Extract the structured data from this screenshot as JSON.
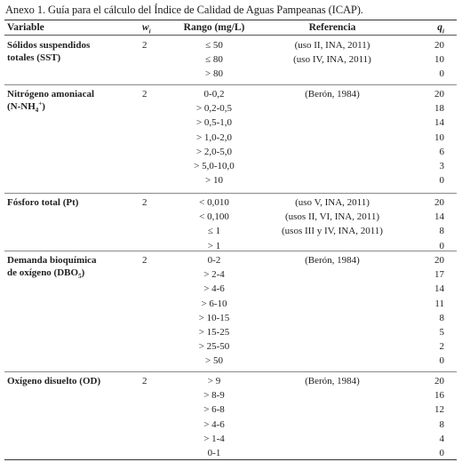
{
  "caption": "Anexo 1. Guía para el cálculo del Índice de Calidad de Aguas Pampeanas (ICAP).",
  "headers": {
    "variable": "Variable",
    "w": "w",
    "w_sub": "i",
    "rango": "Rango (mg/L)",
    "referencia": "Referencia",
    "q": "q",
    "q_sub": "i"
  },
  "groups": [
    {
      "var_lines": [
        "Sólidos suspendidos",
        "totales (SST)"
      ],
      "w": "2",
      "rows": [
        {
          "rango": "≤ 50",
          "ref": "(uso II, INA, 2011)",
          "q": "20"
        },
        {
          "rango": "≤ 80",
          "ref": "(uso IV, INA, 2011)",
          "q": "10"
        },
        {
          "rango": "> 80",
          "ref": "",
          "q": "0"
        }
      ]
    },
    {
      "var_lines": [
        "Nitrógeno amoniacal",
        "(N-NH"
      ],
      "var_suffix_sub": "4",
      "var_suffix_sup": "+",
      "var_suffix_end": ")",
      "w": "2",
      "rows": [
        {
          "rango": "0-0,2",
          "ref": "(Berón, 1984)",
          "q": "20"
        },
        {
          "rango": "> 0,2-0,5",
          "ref": "",
          "q": "18"
        },
        {
          "rango": "> 0,5-1,0",
          "ref": "",
          "q": "14"
        },
        {
          "rango": "> 1,0-2,0",
          "ref": "",
          "q": "10"
        },
        {
          "rango": "> 2,0-5,0",
          "ref": "",
          "q": "6"
        },
        {
          "rango": "> 5,0-10,0",
          "ref": "",
          "q": "3"
        },
        {
          "rango": "> 10",
          "ref": "",
          "q": "0"
        }
      ]
    },
    {
      "var_lines": [
        "Fósforo total (Pt)"
      ],
      "w": "2",
      "rows": [
        {
          "rango": "< 0,010",
          "ref": "(uso V, INA, 2011)",
          "q": "20"
        },
        {
          "rango": "< 0,100",
          "ref": "(usos II, VI, INA, 2011)",
          "q": "14"
        },
        {
          "rango": "≤ 1",
          "ref": "(usos III y IV, INA, 2011)",
          "q": "8"
        },
        {
          "rango": "> 1",
          "ref": "",
          "q": "0"
        }
      ]
    },
    {
      "var_lines": [
        "Demanda bioquímica",
        "de oxígeno (DBO"
      ],
      "var_suffix_sub": "5",
      "var_suffix_end": ")",
      "w": "2",
      "rows": [
        {
          "rango": "0-2",
          "ref": "(Berón, 1984)",
          "q": "20"
        },
        {
          "rango": "> 2-4",
          "ref": "",
          "q": "17"
        },
        {
          "rango": "> 4-6",
          "ref": "",
          "q": "14"
        },
        {
          "rango": "> 6-10",
          "ref": "",
          "q": "11"
        },
        {
          "rango": "> 10-15",
          "ref": "",
          "q": "8"
        },
        {
          "rango": "> 15-25",
          "ref": "",
          "q": "5"
        },
        {
          "rango": "> 25-50",
          "ref": "",
          "q": "2"
        },
        {
          "rango": "> 50",
          "ref": "",
          "q": "0"
        }
      ]
    },
    {
      "var_lines": [
        "Oxígeno disuelto (OD)"
      ],
      "w": "2",
      "rows": [
        {
          "rango": "> 9",
          "ref": "(Berón, 1984)",
          "q": "20"
        },
        {
          "rango": "> 8-9",
          "ref": "",
          "q": "16"
        },
        {
          "rango": "> 6-8",
          "ref": "",
          "q": "12"
        },
        {
          "rango": "> 4-6",
          "ref": "",
          "q": "8"
        },
        {
          "rango": "> 1-4",
          "ref": "",
          "q": "4"
        },
        {
          "rango": "0-1",
          "ref": "",
          "q": "0"
        }
      ]
    }
  ]
}
